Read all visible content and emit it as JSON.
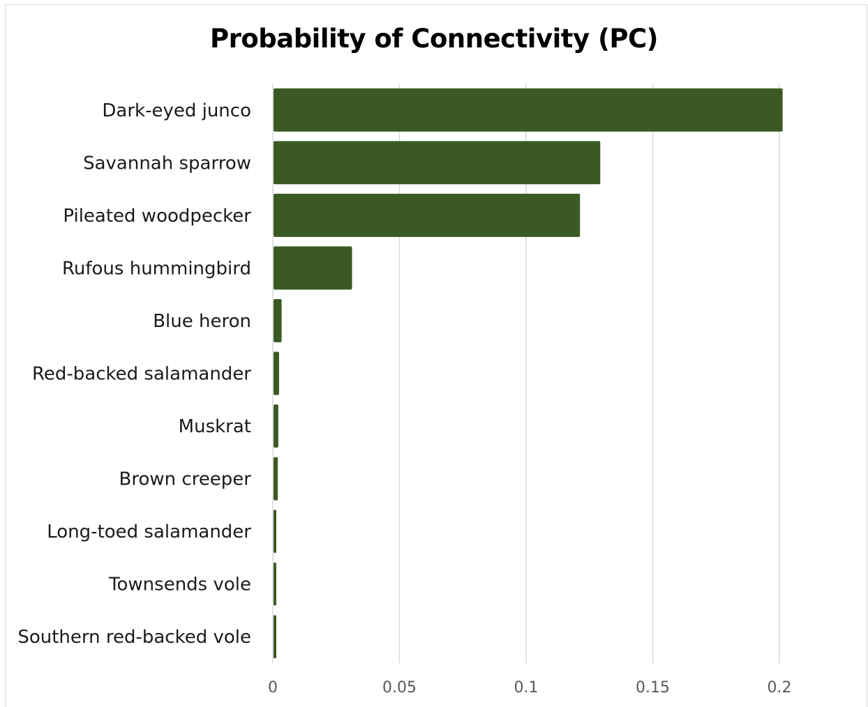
{
  "chart_data": {
    "type": "bar",
    "orientation": "horizontal",
    "title": "Probability of Connectivity (PC)",
    "xlabel": "",
    "ylabel": "",
    "categories": [
      "Dark-eyed junco",
      "Savannah sparrow",
      "Pileated woodpecker",
      "Rufous hummingbird",
      "Blue heron",
      "Red-backed salamander",
      "Muskrat",
      "Brown creeper",
      "Long-toed salamander",
      "Townsends vole",
      "Southern red-backed vole"
    ],
    "values": [
      0.201,
      0.129,
      0.121,
      0.031,
      0.0032,
      0.0022,
      0.0019,
      0.0017,
      0.0011,
      0.0011,
      0.0011
    ],
    "xlim": [
      0,
      0.2
    ],
    "xticks": [
      "0",
      "0.05",
      "0.1",
      "0.15",
      "0.2"
    ],
    "xtick_values": [
      0,
      0.05,
      0.1,
      0.15,
      0.2
    ],
    "grid": true,
    "legend": "none",
    "bar_color": "#3b5a23",
    "grid_color": "#d9d9d9"
  }
}
